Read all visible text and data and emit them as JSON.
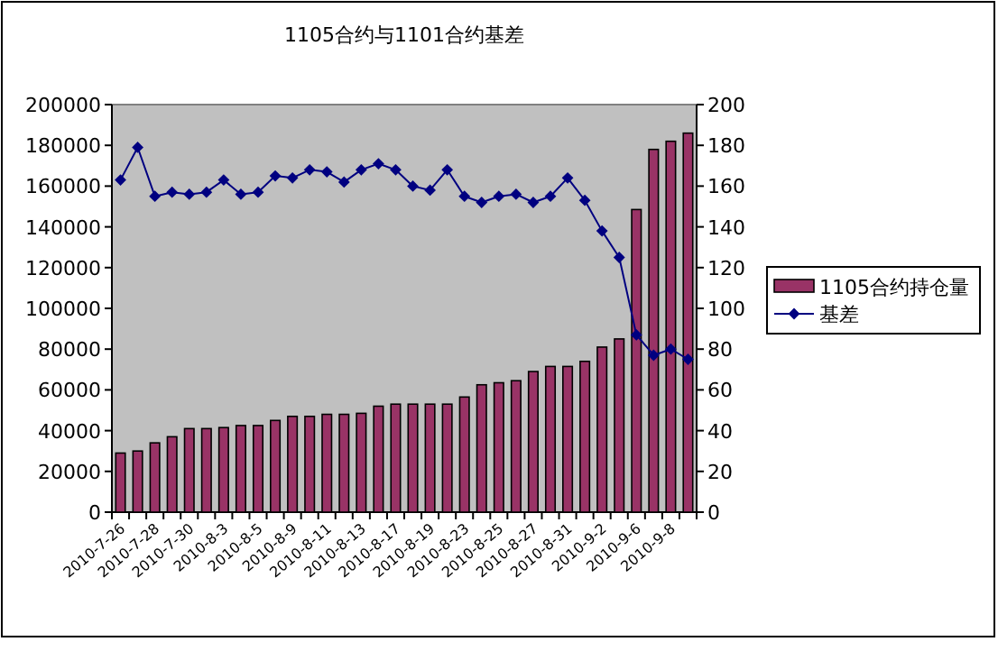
{
  "chart_data": {
    "type": "bar",
    "title": "1105合约与1101合约基差",
    "categories": [
      "2010-7-26",
      null,
      "2010-7-28",
      null,
      "2010-7-30",
      null,
      "2010-8-3",
      null,
      "2010-8-5",
      null,
      "2010-8-9",
      null,
      "2010-8-11",
      null,
      "2010-8-13",
      null,
      "2010-8-17",
      null,
      "2010-8-19",
      null,
      "2010-8-23",
      null,
      "2010-8-25",
      null,
      "2010-8-27",
      null,
      "2010-8-31",
      null,
      "2010-9-2",
      null,
      "2010-9-6",
      null,
      "2010-9-8",
      null
    ],
    "series": [
      {
        "name": "1105合约持仓量",
        "color": "#993366",
        "values": [
          29000,
          30000,
          34000,
          37000,
          41000,
          41000,
          41500,
          42500,
          42500,
          45000,
          47000,
          47000,
          48000,
          48000,
          48500,
          52000,
          53000,
          53000,
          53000,
          53000,
          56500,
          62500,
          63500,
          64500,
          69000,
          71500,
          71500,
          74000,
          81000,
          85000,
          148500,
          178000,
          182000,
          186000
        ]
      },
      {
        "name": "基差",
        "type": "line",
        "axis": "y2",
        "color": "#000080",
        "values": [
          163,
          179,
          155,
          157,
          156,
          157,
          163,
          156,
          157,
          165,
          164,
          168,
          167,
          162,
          168,
          171,
          168,
          160,
          158,
          168,
          155,
          152,
          155,
          156,
          152,
          155,
          164,
          153,
          138,
          125,
          87,
          77,
          80,
          75
        ]
      }
    ],
    "ylim": [
      0,
      200000
    ],
    "yticks": [
      0,
      20000,
      40000,
      60000,
      80000,
      100000,
      120000,
      140000,
      160000,
      180000,
      200000
    ],
    "y2lim": [
      0,
      200
    ],
    "y2ticks": [
      0,
      20,
      40,
      60,
      80,
      100,
      120,
      140,
      160,
      180,
      200
    ],
    "marker": "diamond",
    "legend": "right"
  }
}
